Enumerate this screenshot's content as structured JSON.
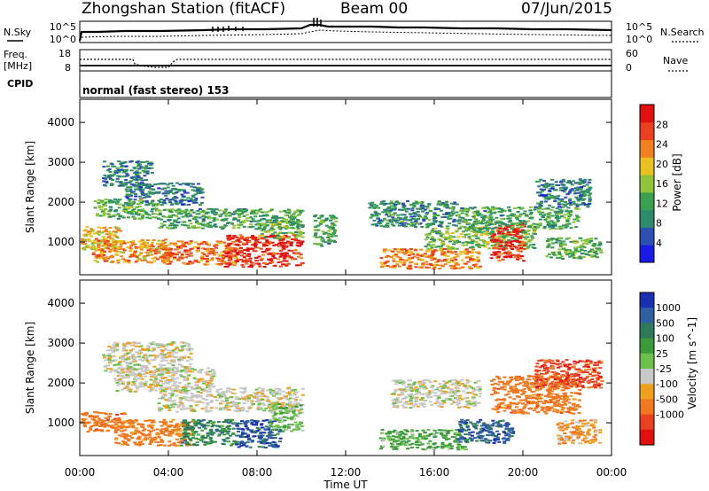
{
  "header": {
    "title": "Zhongshan Station (fitACF)",
    "beam": "Beam 00",
    "date": "07/Jun/2015"
  },
  "noise_panel": {
    "left_label": "N.Sky",
    "right_label": "N.Search",
    "left_ticks": [
      "10^5",
      "10^0"
    ],
    "right_ticks": [
      "10^5",
      "10^0"
    ]
  },
  "freq_panel": {
    "left_label_1": "Freq.",
    "left_label_2": "[MHz]",
    "right_label": "Nave",
    "left_ticks": [
      "18",
      "8"
    ],
    "right_ticks": [
      "60",
      "0"
    ]
  },
  "cpid": {
    "label": "CPID",
    "text": "normal (fast stereo) 153"
  },
  "axes": {
    "ylabel": "Slant Range [km]",
    "xlabel": "Time UT",
    "y_ticks": [
      1000,
      2000,
      3000,
      4000
    ],
    "ylim": [
      180,
      4580
    ],
    "x_ticks": [
      "00:00",
      "04:00",
      "08:00",
      "12:00",
      "16:00",
      "20:00",
      "00:00"
    ],
    "x_tick_hours": [
      0,
      4,
      8,
      12,
      16,
      20,
      24
    ],
    "xlim_hours": [
      0,
      24
    ]
  },
  "colorbars": {
    "power": {
      "label": "Power [dB]",
      "ticks": [
        4,
        8,
        12,
        16,
        20,
        24,
        28
      ],
      "range": [
        0,
        32
      ],
      "colors": [
        "#1a1ae6",
        "#2e4fb0",
        "#2e8a6a",
        "#3aa050",
        "#8fc43a",
        "#e8c020",
        "#f08020",
        "#e84020",
        "#e01010"
      ]
    },
    "velocity": {
      "label": "Velocity [m s^-1]",
      "tick_labels": [
        "1000",
        "500",
        "100",
        "25",
        "-25",
        "-100",
        "-500",
        "-1000"
      ],
      "colors": [
        "#1a2fb0",
        "#2e5fa0",
        "#2e7a5a",
        "#3c9a3c",
        "#6cc04a",
        "#c8c8c8",
        "#f0a020",
        "#f07820",
        "#e84020",
        "#e01010"
      ]
    }
  },
  "chart_data": [
    {
      "type": "heatmap",
      "name": "power",
      "x_unit": "hours UT",
      "y_unit": "km",
      "regions": [
        {
          "t0": 1.0,
          "t1": 3.2,
          "r0": 2400,
          "r1": 3050,
          "value": 8
        },
        {
          "t0": 2.0,
          "t1": 5.5,
          "r0": 1950,
          "r1": 2500,
          "value": 8
        },
        {
          "t0": 0.6,
          "t1": 3.5,
          "r0": 1600,
          "r1": 2100,
          "value": 13
        },
        {
          "t0": 3.5,
          "t1": 10.0,
          "r0": 1350,
          "r1": 1850,
          "value": 12
        },
        {
          "t0": 0.0,
          "t1": 1.8,
          "r0": 800,
          "r1": 1400,
          "value": 20
        },
        {
          "t0": 0.5,
          "t1": 4.0,
          "r0": 500,
          "r1": 1100,
          "value": 22
        },
        {
          "t0": 3.5,
          "t1": 7.0,
          "r0": 450,
          "r1": 1050,
          "value": 24
        },
        {
          "t0": 6.5,
          "t1": 10.0,
          "r0": 400,
          "r1": 1200,
          "value": 28
        },
        {
          "t0": 8.0,
          "t1": 10.0,
          "r0": 1100,
          "r1": 1550,
          "value": 14
        },
        {
          "t0": 10.5,
          "t1": 11.5,
          "r0": 900,
          "r1": 1700,
          "value": 12
        },
        {
          "t0": 13.0,
          "t1": 17.0,
          "r0": 1400,
          "r1": 2050,
          "value": 10
        },
        {
          "t0": 13.5,
          "t1": 18.0,
          "r0": 350,
          "r1": 850,
          "value": 23
        },
        {
          "t0": 15.5,
          "t1": 20.5,
          "r0": 850,
          "r1": 1400,
          "value": 14
        },
        {
          "t0": 18.5,
          "t1": 20.0,
          "r0": 550,
          "r1": 1500,
          "value": 28
        },
        {
          "t0": 17.0,
          "t1": 22.5,
          "r0": 1350,
          "r1": 1900,
          "value": 12
        },
        {
          "t0": 20.5,
          "t1": 23.0,
          "r0": 1900,
          "r1": 2600,
          "value": 8
        },
        {
          "t0": 21.0,
          "t1": 23.5,
          "r0": 600,
          "r1": 1150,
          "value": 13
        }
      ]
    },
    {
      "type": "heatmap",
      "name": "velocity",
      "x_unit": "hours UT",
      "y_unit": "km",
      "regions": [
        {
          "t0": 1.0,
          "t1": 5.0,
          "r0": 2300,
          "r1": 3050,
          "value": 0
        },
        {
          "t0": 1.5,
          "t1": 6.0,
          "r0": 1800,
          "r1": 2400,
          "value": 0
        },
        {
          "t0": 3.5,
          "t1": 10.0,
          "r0": 1300,
          "r1": 1900,
          "value": 0
        },
        {
          "t0": 0.0,
          "t1": 2.0,
          "r0": 800,
          "r1": 1300,
          "value": -300
        },
        {
          "t0": 1.5,
          "t1": 5.0,
          "r0": 450,
          "r1": 1100,
          "value": -200
        },
        {
          "t0": 4.5,
          "t1": 7.0,
          "r0": 450,
          "r1": 1100,
          "value": 300
        },
        {
          "t0": 7.0,
          "t1": 9.0,
          "r0": 400,
          "r1": 1100,
          "value": 800
        },
        {
          "t0": 8.5,
          "t1": 10.0,
          "r0": 800,
          "r1": 1500,
          "value": 60
        },
        {
          "t0": 13.5,
          "t1": 17.5,
          "r0": 350,
          "r1": 850,
          "value": 120
        },
        {
          "t0": 14.0,
          "t1": 18.0,
          "r0": 1400,
          "r1": 2100,
          "value": 0
        },
        {
          "t0": 17.0,
          "t1": 19.5,
          "r0": 500,
          "r1": 1100,
          "value": 700
        },
        {
          "t0": 18.5,
          "t1": 22.5,
          "r0": 1250,
          "r1": 2200,
          "value": -300
        },
        {
          "t0": 20.5,
          "t1": 23.5,
          "r0": 1900,
          "r1": 2600,
          "value": -700
        },
        {
          "t0": 21.5,
          "t1": 23.5,
          "r0": 500,
          "r1": 1100,
          "value": -80
        }
      ]
    }
  ]
}
